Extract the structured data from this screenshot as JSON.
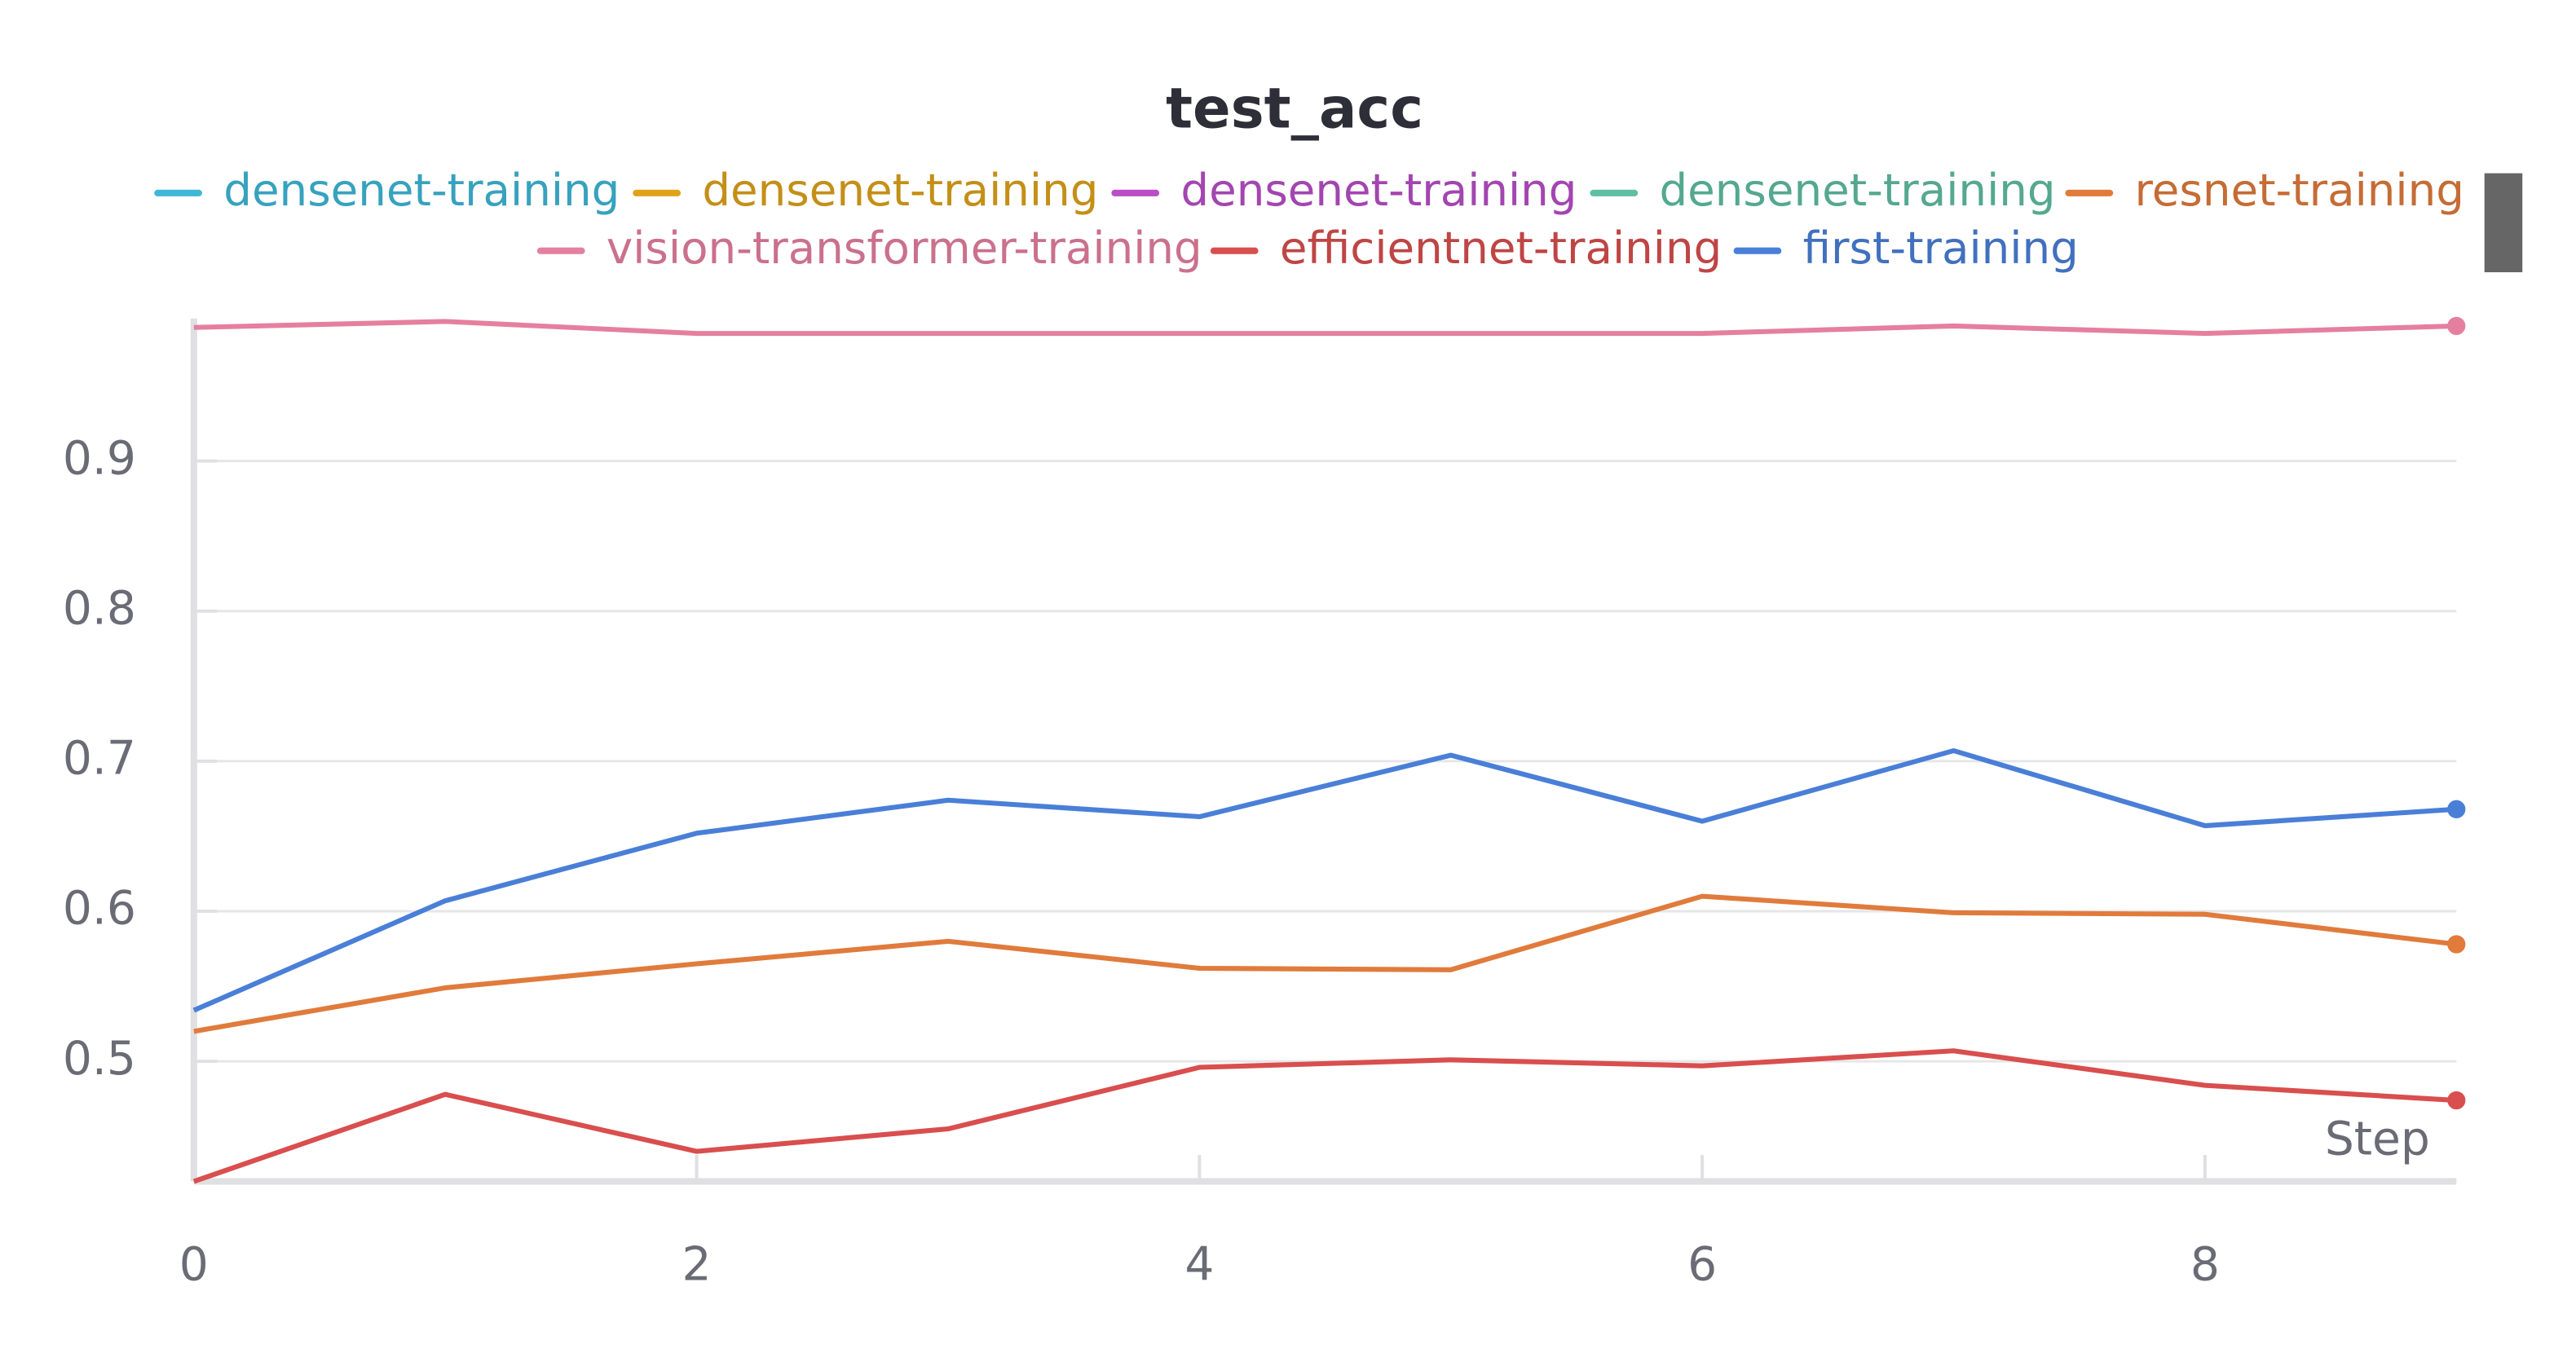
{
  "chart_data": {
    "type": "line",
    "title": "test_acc",
    "x_label": "Step",
    "x": [
      0,
      1,
      2,
      3,
      4,
      5,
      6,
      7,
      8,
      9
    ],
    "xlim": [
      0,
      9
    ],
    "xticks": [
      0,
      2,
      4,
      6,
      8
    ],
    "ylim": [
      0.42,
      0.995
    ],
    "yticks": [
      0.5,
      0.6,
      0.7,
      0.8,
      0.9
    ],
    "grid": true,
    "legend": "top",
    "series": [
      {
        "name": "densenet-training",
        "color": "#3fb8d8",
        "values": [
          null,
          null,
          null,
          null,
          null,
          null,
          null,
          null,
          null,
          null
        ]
      },
      {
        "name": "densenet-training",
        "color": "#dfa21a",
        "values": [
          null,
          null,
          null,
          null,
          null,
          null,
          null,
          null,
          null,
          null
        ]
      },
      {
        "name": "densenet-training",
        "color": "#b94ec8",
        "values": [
          null,
          null,
          null,
          null,
          null,
          null,
          null,
          null,
          null,
          null
        ]
      },
      {
        "name": "densenet-training",
        "color": "#5fbfa3",
        "values": [
          null,
          null,
          null,
          null,
          null,
          null,
          null,
          null,
          null,
          null
        ]
      },
      {
        "name": "resnet-training",
        "color": "#e07b3c",
        "values": [
          0.52,
          0.549,
          0.565,
          0.58,
          0.562,
          0.561,
          0.61,
          0.599,
          0.598,
          0.578
        ]
      },
      {
        "name": "vision-transformer-training",
        "color": "#e57fa0",
        "values": [
          0.989,
          0.993,
          0.985,
          0.985,
          0.985,
          0.985,
          0.985,
          0.99,
          0.985,
          0.99
        ]
      },
      {
        "name": "efficientnet-training",
        "color": "#d94e4e",
        "values": [
          0.42,
          0.478,
          0.44,
          0.455,
          0.496,
          0.501,
          0.497,
          0.507,
          0.484,
          0.474
        ]
      },
      {
        "name": "first-training",
        "color": "#4a7fd8",
        "values": [
          0.534,
          0.607,
          0.652,
          0.674,
          0.663,
          0.704,
          0.66,
          0.707,
          0.657,
          0.668
        ]
      }
    ]
  }
}
